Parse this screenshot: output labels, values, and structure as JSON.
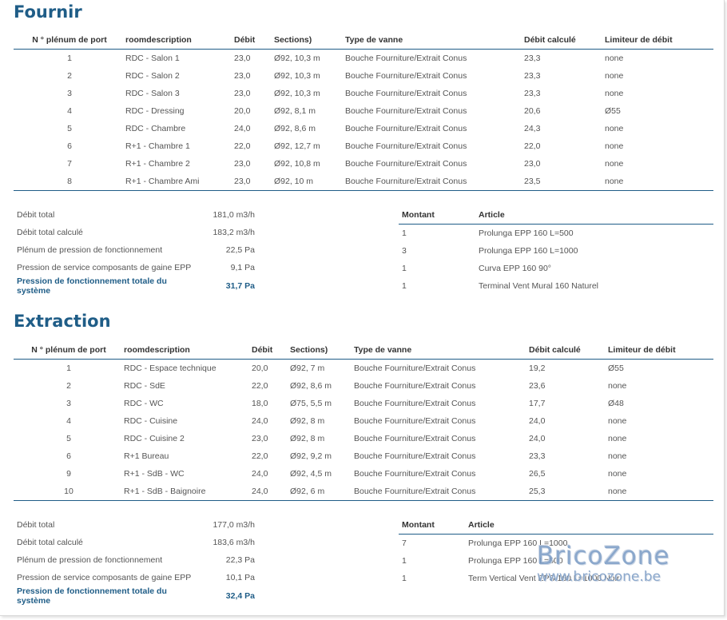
{
  "columns": {
    "port": "N ° plénum de port",
    "room": "roomdescription",
    "debit": "Débit",
    "sections": "Sections)",
    "type": "Type de vanne",
    "calc": "Débit calculé",
    "limit": "Limiteur de débit"
  },
  "art_columns": {
    "qty": "Montant",
    "article": "Article"
  },
  "fournir": {
    "title": "Fournir",
    "rows": [
      {
        "port": "1",
        "room": "RDC - Salon 1",
        "debit": "23,0",
        "sections": "Ø92, 10,3 m",
        "type": "Bouche Fourniture/Extrait Conus",
        "calc": "23,3",
        "limit": "none"
      },
      {
        "port": "2",
        "room": "RDC - Salon 2",
        "debit": "23,0",
        "sections": "Ø92, 10,3 m",
        "type": "Bouche Fourniture/Extrait Conus",
        "calc": "23,3",
        "limit": "none"
      },
      {
        "port": "3",
        "room": "RDC - Salon 3",
        "debit": "23,0",
        "sections": "Ø92, 10,3 m",
        "type": "Bouche Fourniture/Extrait Conus",
        "calc": "23,3",
        "limit": "none"
      },
      {
        "port": "4",
        "room": "RDC - Dressing",
        "debit": "20,0",
        "sections": "Ø92, 8,1 m",
        "type": "Bouche Fourniture/Extrait Conus",
        "calc": "20,6",
        "limit": "Ø55"
      },
      {
        "port": "5",
        "room": "RDC - Chambre",
        "debit": "24,0",
        "sections": "Ø92, 8,6 m",
        "type": "Bouche Fourniture/Extrait Conus",
        "calc": "24,3",
        "limit": "none"
      },
      {
        "port": "6",
        "room": "R+1 - Chambre 1",
        "debit": "22,0",
        "sections": "Ø92, 12,7 m",
        "type": "Bouche Fourniture/Extrait Conus",
        "calc": "22,0",
        "limit": "none"
      },
      {
        "port": "7",
        "room": "R+1 - Chambre 2",
        "debit": "23,0",
        "sections": "Ø92, 10,8 m",
        "type": "Bouche Fourniture/Extrait Conus",
        "calc": "23,0",
        "limit": "none"
      },
      {
        "port": "8",
        "room": "R+1 - Chambre Ami",
        "debit": "23,0",
        "sections": "Ø92, 10 m",
        "type": "Bouche Fourniture/Extrait Conus",
        "calc": "23,5",
        "limit": "none"
      }
    ],
    "summary": [
      {
        "label": "Débit total",
        "value": "181,0 m3/h"
      },
      {
        "label": "Débit total calculé",
        "value": "183,2 m3/h"
      },
      {
        "label": "Plénum de pression de fonctionnement",
        "value": "22,5 Pa"
      },
      {
        "label": "Pression de service composants de gaine EPP",
        "value": "9,1 Pa"
      },
      {
        "label": "Pression de fonctionnement totale du système",
        "value": "31,7 Pa"
      }
    ],
    "articles": [
      {
        "qty": "1",
        "article": "Prolunga EPP 160 L=500"
      },
      {
        "qty": "3",
        "article": "Prolunga EPP 160 L=1000"
      },
      {
        "qty": "1",
        "article": "Curva EPP 160 90°"
      },
      {
        "qty": "1",
        "article": "Terminal Vent Mural 160 Naturel"
      }
    ]
  },
  "extraction": {
    "title": "Extraction",
    "rows": [
      {
        "port": "1",
        "room": "RDC - Espace technique",
        "debit": "20,0",
        "sections": "Ø92, 7 m",
        "type": "Bouche Fourniture/Extrait Conus",
        "calc": "19,2",
        "limit": "Ø55"
      },
      {
        "port": "2",
        "room": "RDC - SdE",
        "debit": "22,0",
        "sections": "Ø92, 8,6 m",
        "type": "Bouche Fourniture/Extrait Conus",
        "calc": "23,6",
        "limit": "none"
      },
      {
        "port": "3",
        "room": "RDC - WC",
        "debit": "18,0",
        "sections": "Ø75, 5,5 m",
        "type": "Bouche Fourniture/Extrait Conus",
        "calc": "17,7",
        "limit": "Ø48"
      },
      {
        "port": "4",
        "room": "RDC - Cuisine",
        "debit": "24,0",
        "sections": "Ø92, 8 m",
        "type": "Bouche Fourniture/Extrait Conus",
        "calc": "24,0",
        "limit": "none"
      },
      {
        "port": "5",
        "room": "RDC - Cuisine 2",
        "debit": "23,0",
        "sections": "Ø92, 8 m",
        "type": "Bouche Fourniture/Extrait Conus",
        "calc": "24,0",
        "limit": "none"
      },
      {
        "port": "6",
        "room": "R+1 Bureau",
        "debit": "22,0",
        "sections": "Ø92, 9,2 m",
        "type": "Bouche Fourniture/Extrait Conus",
        "calc": "23,3",
        "limit": "none"
      },
      {
        "port": "9",
        "room": "R+1 - SdB - WC",
        "debit": "24,0",
        "sections": "Ø92, 4,5 m",
        "type": "Bouche Fourniture/Extrait Conus",
        "calc": "26,5",
        "limit": "none"
      },
      {
        "port": "10",
        "room": "R+1 - SdB - Baignoire",
        "debit": "24,0",
        "sections": "Ø92, 6 m",
        "type": "Bouche Fourniture/Extrait Conus",
        "calc": "25,3",
        "limit": "none"
      }
    ],
    "summary": [
      {
        "label": "Débit total",
        "value": "177,0 m3/h"
      },
      {
        "label": "Débit total calculé",
        "value": "183,6 m3/h"
      },
      {
        "label": "Plénum de pression de fonctionnement",
        "value": "22,3 Pa"
      },
      {
        "label": "Pression de service composants de gaine EPP",
        "value": "10,1 Pa"
      },
      {
        "label": "Pression de fonctionnement totale du système",
        "value": "32,4 Pa"
      }
    ],
    "articles": [
      {
        "qty": "7",
        "article": "Prolunga EPP 160 L=1000"
      },
      {
        "qty": "1",
        "article": "Prolunga EPP 160 L=500"
      },
      {
        "qty": "1",
        "article": "Term Vertical Vent EPS 160 L=1000 Noir"
      }
    ]
  },
  "watermark": {
    "brand": "BricoZone",
    "url": "www.bricozone.be"
  }
}
